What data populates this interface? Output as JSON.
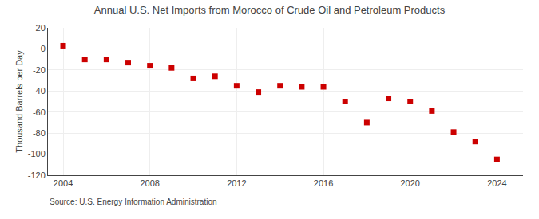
{
  "chart_data": {
    "type": "scatter",
    "title": "Annual U.S. Net Imports from Morocco of Crude Oil and Petroleum Products",
    "ylabel": "Thousand Barrels per Day",
    "annotations": [
      "Source: U.S. Energy Information Administration"
    ],
    "x": [
      2004,
      2005,
      2006,
      2007,
      2008,
      2009,
      2010,
      2011,
      2012,
      2013,
      2014,
      2015,
      2016,
      2017,
      2018,
      2019,
      2020,
      2021,
      2022,
      2023,
      2024
    ],
    "values": [
      3,
      -10,
      -10,
      -13,
      -16,
      -18,
      -28,
      -26,
      -35,
      -41,
      -35,
      -36,
      -36,
      -50,
      -70,
      -47,
      -50,
      -59,
      -79,
      -88,
      -105
    ],
    "color": "#cc0000",
    "marker": "square",
    "xlim": [
      2003.3,
      2025.2
    ],
    "xticks": [
      2004,
      2008,
      2012,
      2016,
      2020,
      2024
    ],
    "ylim": [
      -120,
      20
    ],
    "yticks": [
      20,
      0,
      -20,
      -40,
      -60,
      -80,
      -100,
      -120
    ],
    "grid": true
  }
}
